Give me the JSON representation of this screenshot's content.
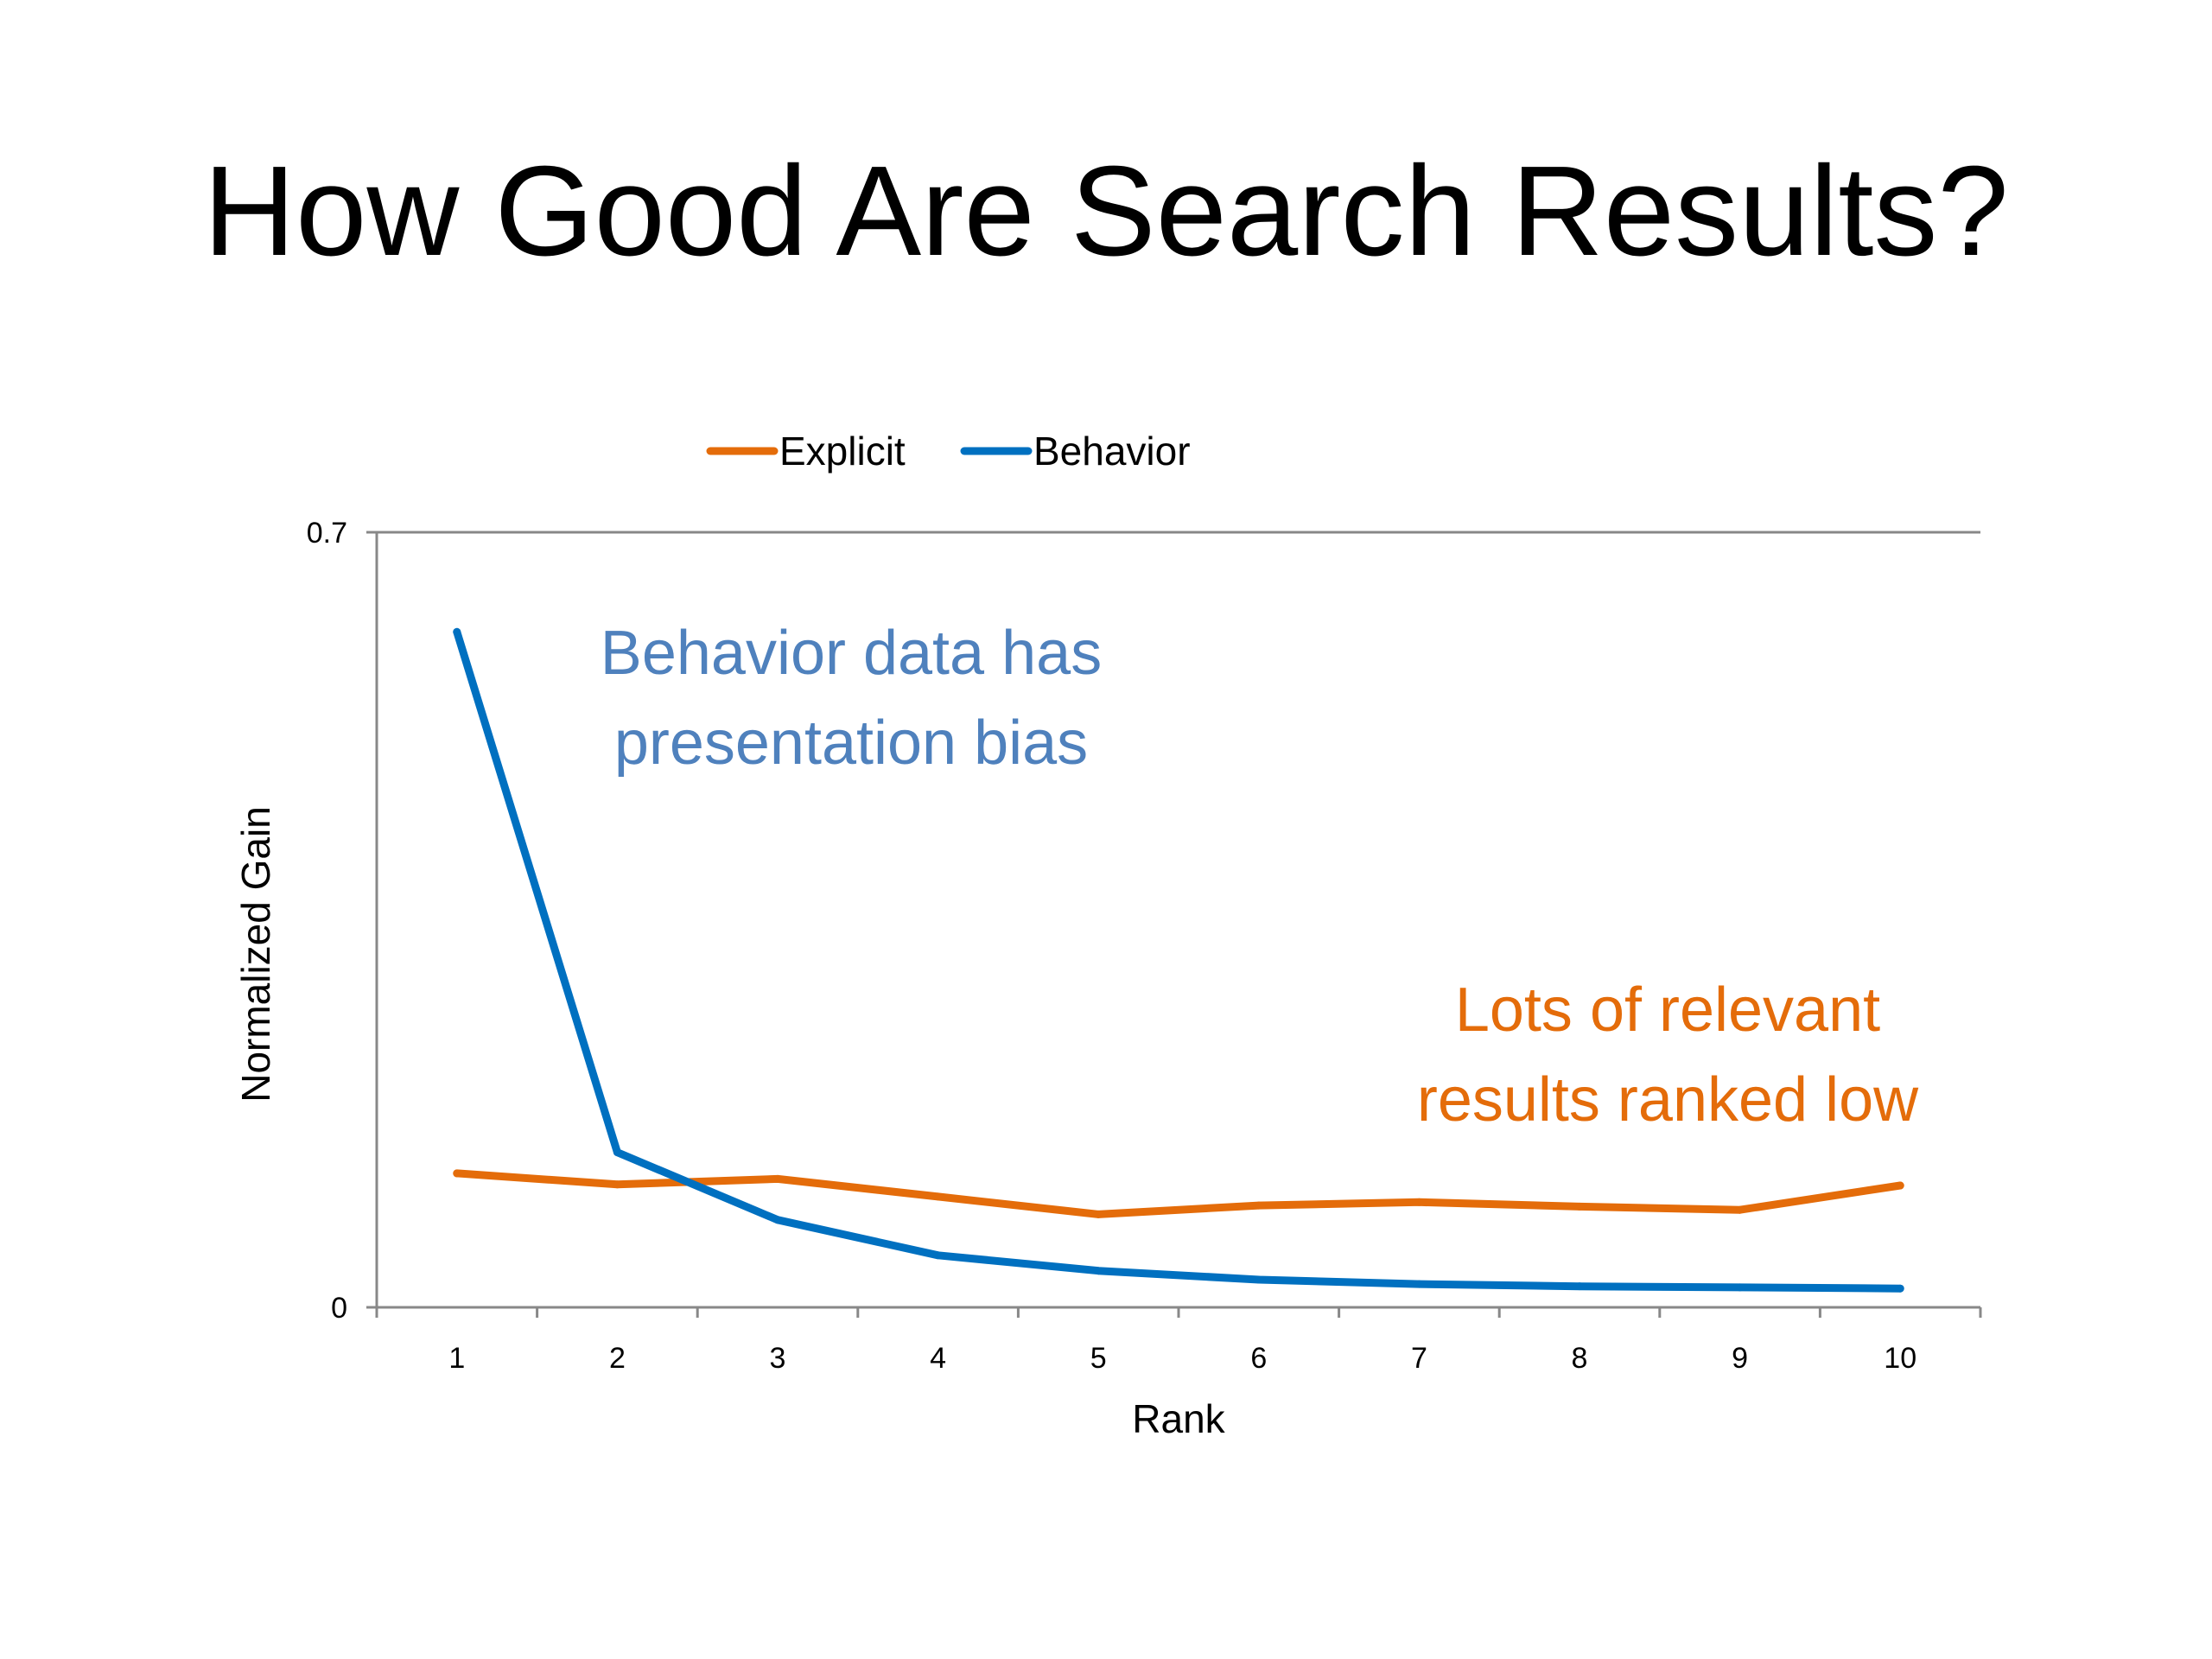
{
  "slide": {
    "title": "How Good Are Search Results?"
  },
  "colors": {
    "explicit": "#E46C0A",
    "behavior": "#0070C0",
    "annotation_behavior": "#4F81BD",
    "annotation_explicit": "#E46C0A",
    "axis": "#888888"
  },
  "chart_data": {
    "type": "line",
    "xlabel": "Rank",
    "ylabel": "Normalized Gain",
    "x": [
      1,
      2,
      3,
      4,
      5,
      6,
      7,
      8,
      9,
      10
    ],
    "x_tick_labels": [
      "1",
      "2",
      "3",
      "4",
      "5",
      "6",
      "7",
      "8",
      "9",
      "10"
    ],
    "ylim": [
      0,
      0.7
    ],
    "y_tick_labels": [
      "0",
      "0.7"
    ],
    "grid": false,
    "legend_position": "top-center",
    "series": [
      {
        "name": "Explicit",
        "color": "#E46C0A",
        "values": [
          0.121,
          0.111,
          0.116,
          0.1,
          0.084,
          0.092,
          0.095,
          0.091,
          0.088,
          0.11
        ]
      },
      {
        "name": "Behavior",
        "color": "#0070C0",
        "values": [
          0.61,
          0.14,
          0.079,
          0.047,
          0.033,
          0.025,
          0.021,
          0.019,
          0.018,
          0.017
        ]
      }
    ],
    "annotations": [
      {
        "lines": [
          "Behavior data has",
          "presentation bias"
        ],
        "color": "#4F81BD"
      },
      {
        "lines": [
          "Lots of relevant",
          "results ranked low"
        ],
        "color": "#E46C0A"
      }
    ]
  }
}
